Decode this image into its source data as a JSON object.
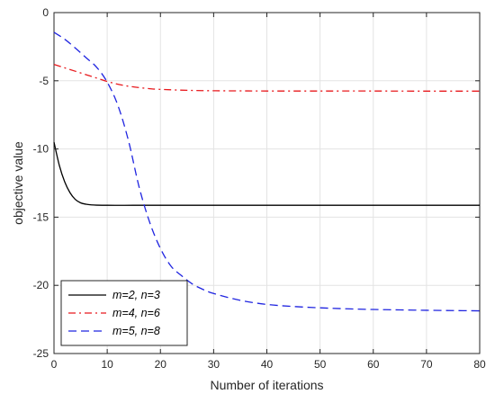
{
  "chart_data": {
    "type": "line",
    "xlabel": "Number of iterations",
    "ylabel": "objective value",
    "xlim": [
      0,
      80
    ],
    "ylim": [
      -25,
      0
    ],
    "x_ticks": [
      "0",
      "10",
      "20",
      "30",
      "40",
      "50",
      "60",
      "70",
      "80"
    ],
    "y_ticks": [
      "0",
      "-5",
      "-10",
      "-15",
      "-20",
      "-25"
    ],
    "grid": true,
    "legend_position": "bottom-left",
    "series": [
      {
        "name": "m=2, n=3",
        "color": "#000000",
        "style": "solid",
        "x": [
          0,
          1,
          2,
          3,
          4,
          5,
          6,
          7,
          8,
          10,
          15,
          20,
          30,
          40,
          50,
          60,
          70,
          80
        ],
        "y": [
          -9.5,
          -11.2,
          -12.4,
          -13.2,
          -13.7,
          -13.95,
          -14.05,
          -14.1,
          -14.12,
          -14.13,
          -14.13,
          -14.13,
          -14.13,
          -14.13,
          -14.13,
          -14.13,
          -14.13,
          -14.13
        ]
      },
      {
        "name": "m=4, n=6",
        "color": "#e8191d",
        "style": "dashdot",
        "x": [
          0,
          2,
          4,
          6,
          8,
          10,
          12,
          14,
          16,
          18,
          20,
          25,
          30,
          35,
          40,
          50,
          60,
          70,
          80
        ],
        "y": [
          -3.8,
          -4.05,
          -4.3,
          -4.55,
          -4.8,
          -5.05,
          -5.25,
          -5.4,
          -5.5,
          -5.58,
          -5.63,
          -5.7,
          -5.73,
          -5.74,
          -5.75,
          -5.75,
          -5.75,
          -5.76,
          -5.76
        ]
      },
      {
        "name": "m=5, n=8",
        "color": "#1f24e0",
        "style": "dashed",
        "x": [
          0,
          2,
          4,
          6,
          8,
          10,
          12,
          14,
          16,
          18,
          20,
          22,
          24,
          26,
          28,
          30,
          35,
          40,
          45,
          50,
          55,
          60,
          65,
          70,
          75,
          80
        ],
        "y": [
          -1.45,
          -1.95,
          -2.6,
          -3.3,
          -4.0,
          -5.1,
          -6.8,
          -9.4,
          -12.8,
          -15.4,
          -17.3,
          -18.6,
          -19.3,
          -19.9,
          -20.3,
          -20.6,
          -21.1,
          -21.4,
          -21.55,
          -21.65,
          -21.72,
          -21.77,
          -21.8,
          -21.83,
          -21.85,
          -21.87
        ]
      }
    ]
  }
}
